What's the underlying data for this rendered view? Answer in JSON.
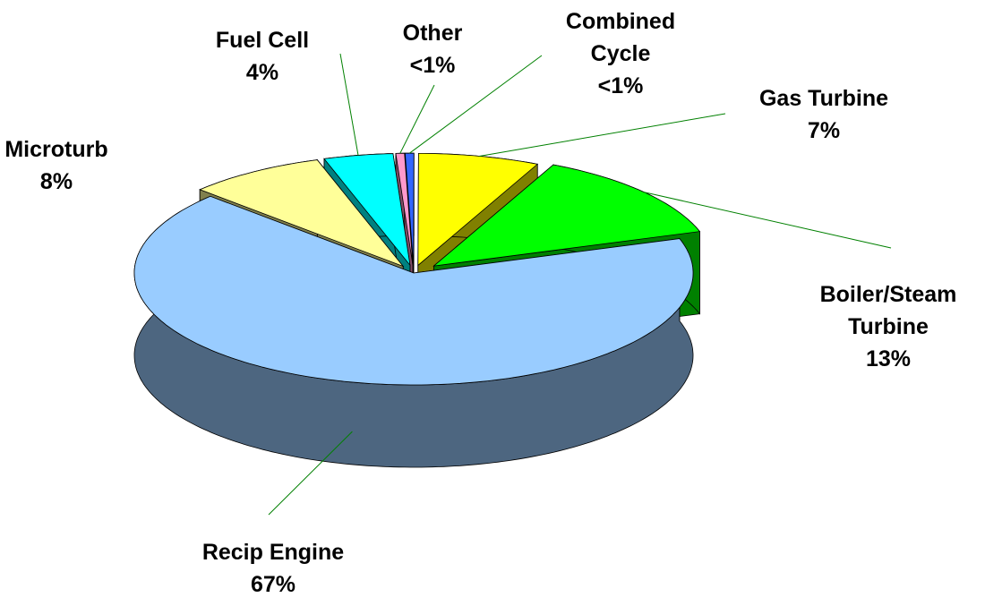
{
  "chart_data": {
    "type": "pie3d",
    "categories": [
      "Other",
      "Combined Cycle",
      "Gas Turbine",
      "Boiler/Steam Turbine",
      "Recip Engine",
      "Microturb",
      "Fuel Cell"
    ],
    "values": [
      0.5,
      0.5,
      7,
      13,
      67,
      8,
      4
    ],
    "value_labels": [
      "<1%",
      "<1%",
      "7%",
      "13%",
      "67%",
      "8%",
      "4%"
    ],
    "colors": [
      "#ff99cc",
      "#3366ff",
      "#ffff00",
      "#00ff00",
      "#99ccff",
      "#ffff99",
      "#00ffff"
    ]
  }
}
